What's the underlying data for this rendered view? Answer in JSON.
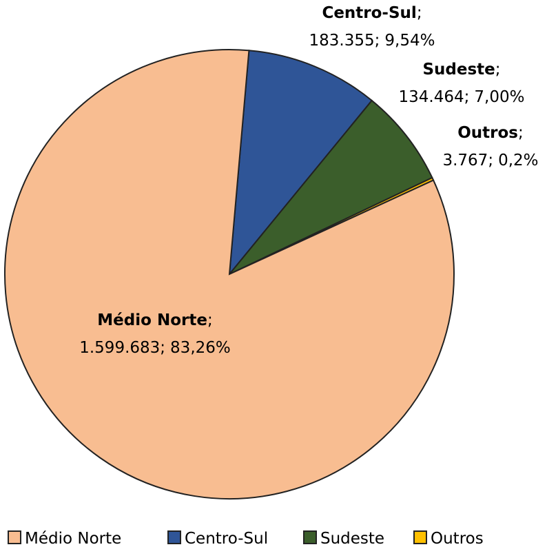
{
  "chart_data": {
    "type": "pie",
    "categories": [
      "Médio Norte",
      "Centro-Sul",
      "Sudeste",
      "Outros"
    ],
    "values": [
      1599683,
      183355,
      134464,
      3767
    ],
    "value_labels": [
      "1.599.683",
      "183.355",
      "134.464",
      "3.767"
    ],
    "percentages": [
      83.26,
      9.54,
      7.0,
      0.2
    ],
    "percentage_labels": [
      "83,26%",
      "9,54%",
      "7,00%",
      "0,2%"
    ],
    "label_separator": ";",
    "colors": [
      "#f8bd91",
      "#2f5597",
      "#3b5e2b",
      "#ffc000"
    ],
    "legend": "bottom"
  }
}
